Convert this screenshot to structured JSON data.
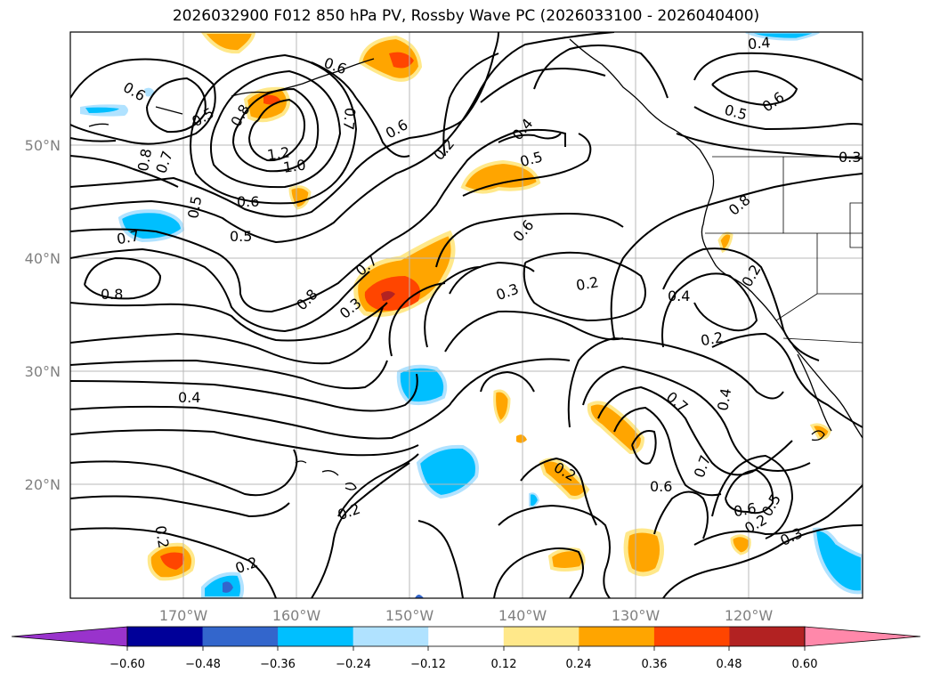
{
  "title": "2026032900 F012 850 hPa PV, Rossby Wave PC (2026033100 - 2026040400)",
  "lat_labels": [
    "50°N",
    "40°N",
    "30°N",
    "20°N"
  ],
  "lon_labels": [
    "170°W",
    "160°W",
    "150°W",
    "140°W",
    "130°W",
    "120°W"
  ],
  "contour_labels": [
    "0.6",
    "0.5",
    "0.8",
    "0.6",
    "0.7",
    "0.8",
    "0.7",
    "1.2",
    "1.0",
    "0.6",
    "0.5",
    "0.7",
    "0.8",
    "0.5",
    "0.7",
    "0.8",
    "0.6",
    "0.3",
    "0.2",
    "0.4",
    "0.5",
    "0.6",
    "0.3",
    "0.2",
    "0.4",
    "0.5",
    "0.6",
    "0.4",
    "0.3",
    "0.8",
    "0.2",
    "0.4",
    "0.2",
    "0.4",
    "0.7",
    "0.6",
    "0.7",
    "0.6",
    "0.5",
    "0.2",
    "0.2",
    "0.2",
    "0.2",
    "0.2",
    "0.3"
  ],
  "colorbar": {
    "ticks": [
      "−0.60",
      "−0.48",
      "−0.36",
      "−0.24",
      "−0.12",
      "0.12",
      "0.24",
      "0.36",
      "0.48",
      "0.60"
    ],
    "colors": [
      "#9933cc",
      "#000099",
      "#3366cc",
      "#00bfff",
      "#b0e2ff",
      "#ffffff",
      "#ffe88a",
      "#ffa500",
      "#ff4500",
      "#b22222",
      "#ff88aa"
    ]
  }
}
